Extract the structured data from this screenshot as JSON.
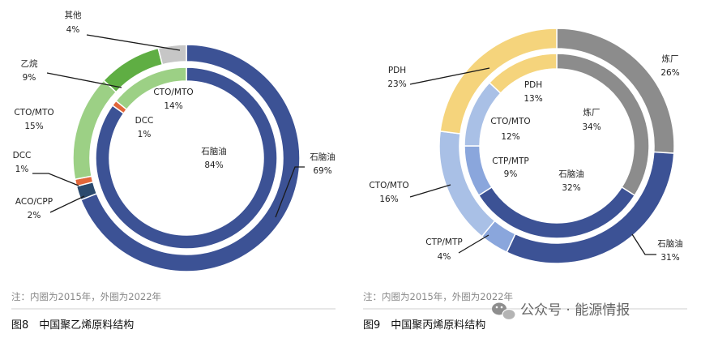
{
  "chart_data": [
    {
      "type": "pie",
      "inner_year": "2015",
      "outer_year": "2022",
      "categories": [
        "石脑油",
        "ACO/CPP",
        "DCC",
        "CTO/MTO",
        "乙烷",
        "其他"
      ],
      "series": [
        {
          "ring": "inner",
          "values": [
            84,
            0,
            1,
            14,
            0,
            0
          ],
          "colors": [
            "#3c5295",
            "#2b4a6e",
            "#e2673a",
            "#9cd085",
            "#5fae43",
            "#c6c6c6"
          ]
        },
        {
          "ring": "outer",
          "values": [
            69,
            2,
            1,
            15,
            9,
            4
          ],
          "colors": [
            "#3c5295",
            "#2b4a6e",
            "#e2673a",
            "#9cd085",
            "#5fae43",
            "#c6c6c6"
          ]
        }
      ],
      "labels": {
        "inner": [
          {
            "name": "石脑油",
            "value": "84%"
          },
          {
            "name": "DCC",
            "value": "1%"
          },
          {
            "name": "CTO/MTO",
            "value": "14%"
          }
        ],
        "outer": [
          {
            "name": "其他",
            "value": "4%"
          },
          {
            "name": "乙烷",
            "value": "9%"
          },
          {
            "name": "CTO/MTO",
            "value": "15%"
          },
          {
            "name": "DCC",
            "value": "1%"
          },
          {
            "name": "ACO/CPP",
            "value": "2%"
          },
          {
            "name": "石脑油",
            "value": "69%"
          }
        ]
      },
      "note": "注：内圈为2015年，外圈为2022年",
      "caption": "图8　中国聚乙烯原料结构"
    },
    {
      "type": "pie",
      "inner_year": "2015",
      "outer_year": "2022",
      "categories": [
        "炼厂",
        "石脑油",
        "CTP/MTP",
        "CTO/MTO",
        "PDH"
      ],
      "series": [
        {
          "ring": "inner",
          "values": [
            34,
            32,
            9,
            12,
            13
          ],
          "colors": [
            "#8c8c8c",
            "#3c5295",
            "#8aa6dc",
            "#a9c0e6",
            "#f5d47c"
          ]
        },
        {
          "ring": "outer",
          "values": [
            26,
            31,
            4,
            16,
            23
          ],
          "colors": [
            "#8c8c8c",
            "#3c5295",
            "#8aa6dc",
            "#a9c0e6",
            "#f5d47c"
          ]
        }
      ],
      "labels": {
        "inner": [
          {
            "name": "PDH",
            "value": "13%"
          },
          {
            "name": "炼厂",
            "value": "34%"
          },
          {
            "name": "CTO/MTO",
            "value": "12%"
          },
          {
            "name": "CTP/MTP",
            "value": "9%"
          },
          {
            "name": "石脑油",
            "value": "32%"
          }
        ],
        "outer": [
          {
            "name": "PDH",
            "value": "23%"
          },
          {
            "name": "炼厂",
            "value": "26%"
          },
          {
            "name": "CTO/MTO",
            "value": "16%"
          },
          {
            "name": "CTP/MTP",
            "value": "4%"
          },
          {
            "name": "石脑油",
            "value": "31%"
          }
        ]
      },
      "note": "注：内圈为2015年，外圈为2022年",
      "caption": "图9　中国聚丙烯原料结构"
    }
  ],
  "watermark": "公众号 · 能源情报",
  "icons": {
    "watermark": "wechat-icon"
  }
}
